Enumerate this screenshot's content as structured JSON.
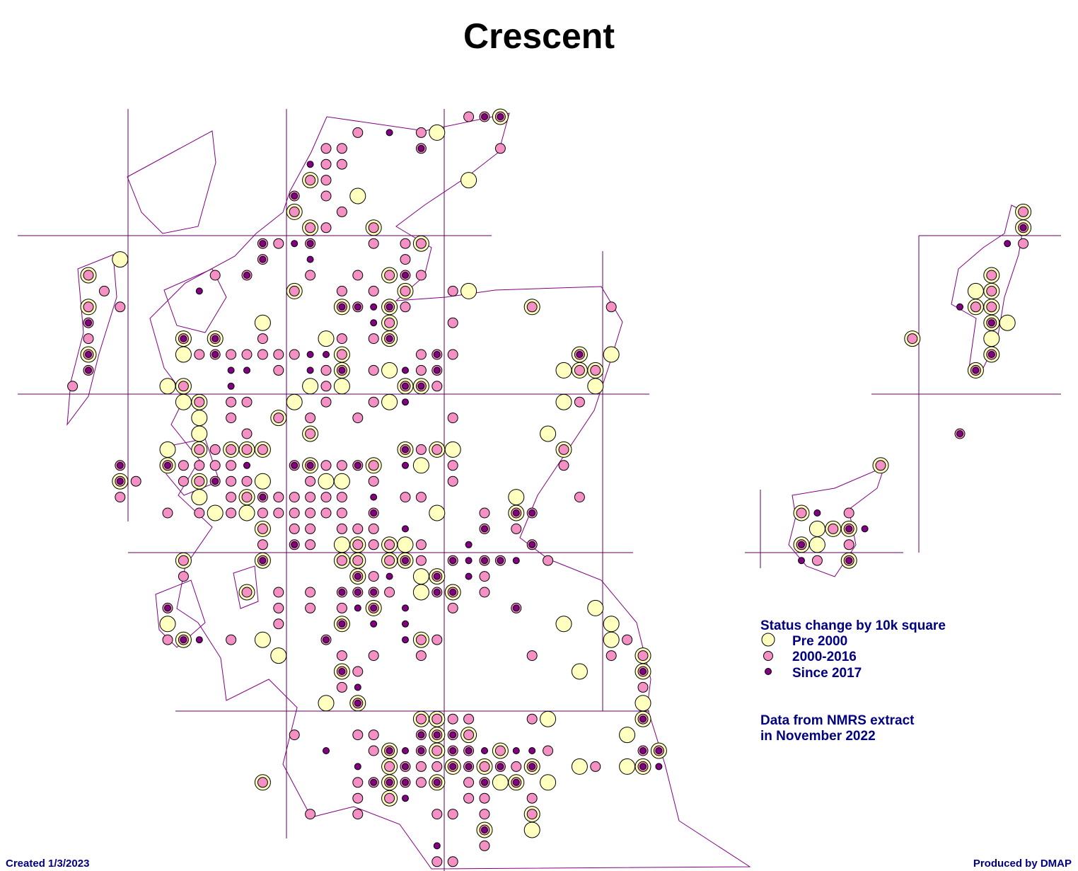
{
  "title": "Crescent",
  "legend": {
    "title": "Status change by 10k square",
    "items": [
      "Pre 2000",
      "2000-2016",
      "Since 2017"
    ]
  },
  "note": [
    "Data from NMRS extract",
    "in November 2022"
  ],
  "footer": {
    "created": "Created 1/3/2023",
    "produced": "Produced by DMAP"
  }
}
